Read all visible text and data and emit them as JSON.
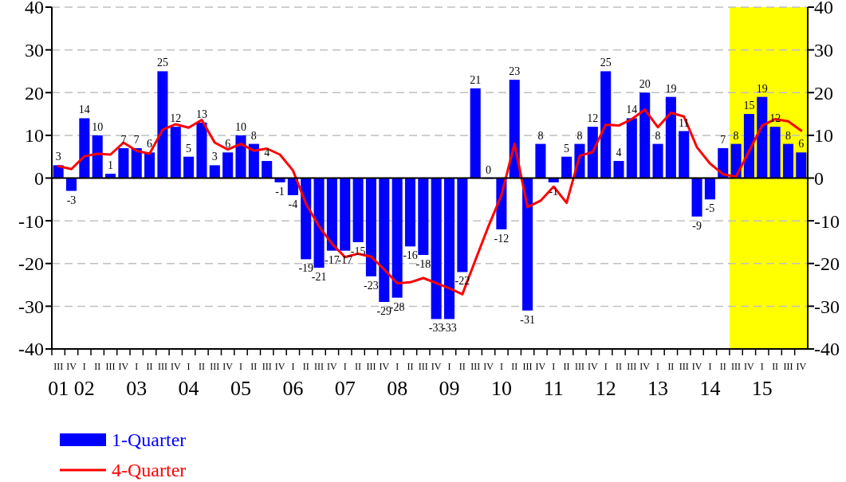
{
  "chart_data": {
    "type": "bar",
    "categories": [
      "III\n01",
      "IV",
      "I\n02",
      "II",
      "III",
      "IV",
      "I\n03",
      "II",
      "III",
      "IV",
      "I\n04",
      "II",
      "III",
      "IV",
      "I\n05",
      "II",
      "III",
      "IV",
      "I\n06",
      "II",
      "III",
      "IV",
      "I\n07",
      "II",
      "III",
      "IV",
      "I\n08",
      "II",
      "III",
      "IV",
      "I\n09",
      "II",
      "III",
      "IV",
      "I\n10",
      "II",
      "III",
      "IV",
      "I\n11",
      "II",
      "III",
      "IV",
      "I\n12",
      "II",
      "III",
      "IV",
      "I\n13",
      "II",
      "III",
      "IV",
      "I\n14",
      "II",
      "III",
      "IV",
      "I\n15",
      "II",
      "III",
      "IV"
    ],
    "ylim": [
      -40,
      40
    ],
    "yticks": [
      -40,
      -30,
      -20,
      -10,
      0,
      10,
      20,
      30,
      40
    ],
    "y2lim": [
      -40,
      40
    ],
    "y2ticks": [
      -40,
      -30,
      -20,
      -10,
      0,
      10,
      20,
      30,
      40
    ],
    "grid": "y",
    "legend": "bottom left",
    "series": [
      {
        "name": "1-Quarter",
        "color": "#0000ff",
        "values": [
          3,
          -3,
          14,
          10,
          1,
          7,
          7,
          6,
          25,
          12,
          5,
          13,
          3,
          6,
          10,
          8,
          4,
          -1,
          -4,
          -19,
          -21,
          -17,
          -17,
          -15,
          -23,
          -29,
          -28,
          -16,
          -18,
          -33,
          -33,
          -22,
          21,
          0,
          -12,
          23,
          -31,
          8,
          -1,
          5,
          8,
          12,
          25,
          4,
          14,
          20,
          8,
          19,
          11,
          -9,
          -5,
          7,
          8,
          15,
          19,
          12,
          8,
          6
        ],
        "value_labels": [
          "3",
          "-3",
          "14",
          "10",
          "1",
          "7",
          "7",
          "6",
          "25",
          "12",
          "5",
          "13",
          "3",
          "6",
          "10",
          "8",
          "4",
          "-1",
          "-4",
          "-19",
          "-21",
          "-17",
          "-17",
          "-15",
          "-23",
          "-29",
          "-28",
          "-16",
          "-18",
          "-33",
          "-33",
          "-22",
          "21",
          "0",
          "-12",
          "23",
          "-31",
          "8",
          "-1",
          "5",
          "8",
          "12",
          "25",
          "4",
          "14",
          "20",
          "8",
          "19",
          "11",
          "-9",
          "-5",
          "7",
          "8",
          "15",
          "19",
          "12",
          "8",
          "6"
        ]
      },
      {
        "name": "4-Quarter",
        "type": "line",
        "color": "#ff0000",
        "values": [
          2.8,
          2.1,
          5.1,
          5.7,
          5.5,
          8.3,
          6.4,
          5.7,
          11.3,
          12.6,
          11.8,
          13.6,
          8.3,
          6.7,
          8.0,
          6.4,
          6.9,
          5.5,
          1.8,
          -6,
          -11.3,
          -15.4,
          -18.5,
          -17.7,
          -18.4,
          -21.4,
          -24.6,
          -24.4,
          -23.4,
          -24.6,
          -25.8,
          -27.2,
          -19.2,
          -11.3,
          -4.0,
          8.0,
          -6.8,
          -5.3,
          -2.0,
          -5.8,
          5.2,
          6.1,
          12.5,
          12.3,
          13.8,
          16.0,
          11.9,
          15.3,
          14.4,
          7.2,
          3.4,
          0.9,
          0.3,
          6.3,
          12.3,
          13.8,
          13.3,
          11.1
        ]
      }
    ]
  }
}
